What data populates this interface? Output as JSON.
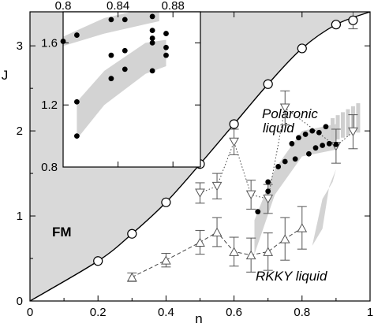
{
  "chart_data": [
    {
      "type": "scatter",
      "title": "",
      "xlabel": "n",
      "ylabel": "J",
      "xlim": [
        0,
        1
      ],
      "ylim": [
        0,
        3.4
      ],
      "xticks": [
        "0",
        "0.2",
        "0.4",
        "0.6",
        "0.8",
        "1"
      ],
      "yticks": [
        "0",
        "1",
        "2",
        "3"
      ],
      "grid": false,
      "annotations": [
        {
          "text": "FM",
          "x": 0.09,
          "y": 0.9,
          "style": "bold"
        },
        {
          "text": "Polaronic",
          "x": 0.765,
          "y": 2.22,
          "style": "italic"
        },
        {
          "text": "liquid",
          "x": 0.765,
          "y": 2.02,
          "style": "italic"
        },
        {
          "text": "RKKY liquid",
          "x": 0.765,
          "y": 0.28,
          "style": "italic"
        }
      ],
      "series": [
        {
          "marker": "open-circle",
          "points": [
            {
              "x": 0.2,
              "y": 0.47
            },
            {
              "x": 0.3,
              "y": 0.79
            },
            {
              "x": 0.4,
              "y": 1.16
            },
            {
              "x": 0.5,
              "y": 1.61
            },
            {
              "x": 0.6,
              "y": 2.08
            },
            {
              "x": 0.7,
              "y": 2.55
            },
            {
              "x": 0.8,
              "y": 2.97
            },
            {
              "x": 0.9,
              "y": 3.25
            },
            {
              "x": 0.95,
              "y": 3.3,
              "err": 0.1
            }
          ]
        },
        {
          "marker": "open-triangle-down",
          "line": "dotted",
          "points": [
            {
              "x": 0.5,
              "y": 1.27,
              "err": 0.12
            },
            {
              "x": 0.55,
              "y": 1.35,
              "err": 0.15
            },
            {
              "x": 0.6,
              "y": 1.87,
              "err": 0.15
            },
            {
              "x": 0.65,
              "y": 1.25,
              "err": 0.17
            },
            {
              "x": 0.7,
              "y": 1.2,
              "err": 0.17
            },
            {
              "x": 0.75,
              "y": 2.27,
              "err": 0.2
            },
            {
              "x": 0.9,
              "y": 1.82,
              "err": 0.2
            },
            {
              "x": 0.95,
              "y": 1.99,
              "err": 0.2
            }
          ]
        },
        {
          "marker": "open-triangle-up",
          "line": "dashed",
          "points": [
            {
              "x": 0.3,
              "y": 0.28,
              "err": 0.05
            },
            {
              "x": 0.4,
              "y": 0.48,
              "err": 0.08
            },
            {
              "x": 0.5,
              "y": 0.69,
              "err": 0.14
            },
            {
              "x": 0.55,
              "y": 0.81,
              "err": 0.17
            },
            {
              "x": 0.6,
              "y": 0.58,
              "err": 0.17
            },
            {
              "x": 0.65,
              "y": 0.54,
              "err": 0.2
            },
            {
              "x": 0.7,
              "y": 0.58,
              "err": 0.22
            },
            {
              "x": 0.75,
              "y": 0.73,
              "err": 0.25
            },
            {
              "x": 0.8,
              "y": 0.86,
              "err": 0.25
            }
          ]
        },
        {
          "marker": "filled-circle",
          "points": [
            {
              "x": 0.67,
              "y": 1.05
            },
            {
              "x": 0.7,
              "y": 1.29
            },
            {
              "x": 0.7,
              "y": 1.4
            },
            {
              "x": 0.73,
              "y": 1.58
            },
            {
              "x": 0.75,
              "y": 1.64
            },
            {
              "x": 0.77,
              "y": 1.85
            },
            {
              "x": 0.78,
              "y": 1.67
            },
            {
              "x": 0.79,
              "y": 1.92
            },
            {
              "x": 0.81,
              "y": 1.96
            },
            {
              "x": 0.82,
              "y": 1.73
            },
            {
              "x": 0.83,
              "y": 2.0
            },
            {
              "x": 0.84,
              "y": 1.8
            },
            {
              "x": 0.85,
              "y": 1.98
            },
            {
              "x": 0.86,
              "y": 1.83
            },
            {
              "x": 0.87,
              "y": 2.05
            },
            {
              "x": 0.88,
              "y": 1.85
            },
            {
              "x": 0.9,
              "y": 1.84
            }
          ]
        }
      ]
    },
    {
      "type": "scatter",
      "title": "",
      "xlabel": "",
      "ylabel": "",
      "xlim": [
        0.8,
        0.9
      ],
      "ylim": [
        0.8,
        1.8
      ],
      "xticks": [
        "0.8",
        "0.84",
        "0.88"
      ],
      "yticks": [
        "0.8",
        "1.2",
        "1.6"
      ],
      "grid": false,
      "series": [
        {
          "marker": "filled-circle",
          "points": [
            {
              "x": 0.8,
              "y": 1.61
            },
            {
              "x": 0.81,
              "y": 1.22
            },
            {
              "x": 0.81,
              "y": 1.0
            },
            {
              "x": 0.81,
              "y": 1.65
            },
            {
              "x": 0.835,
              "y": 1.37
            },
            {
              "x": 0.835,
              "y": 1.52
            },
            {
              "x": 0.835,
              "y": 1.75
            },
            {
              "x": 0.845,
              "y": 1.43
            },
            {
              "x": 0.845,
              "y": 1.55
            },
            {
              "x": 0.845,
              "y": 1.75
            },
            {
              "x": 0.865,
              "y": 1.42
            },
            {
              "x": 0.865,
              "y": 1.6
            },
            {
              "x": 0.865,
              "y": 1.63
            },
            {
              "x": 0.865,
              "y": 1.68
            },
            {
              "x": 0.865,
              "y": 1.77
            },
            {
              "x": 0.875,
              "y": 1.52
            },
            {
              "x": 0.875,
              "y": 1.57
            },
            {
              "x": 0.875,
              "y": 1.66
            }
          ]
        }
      ]
    }
  ]
}
